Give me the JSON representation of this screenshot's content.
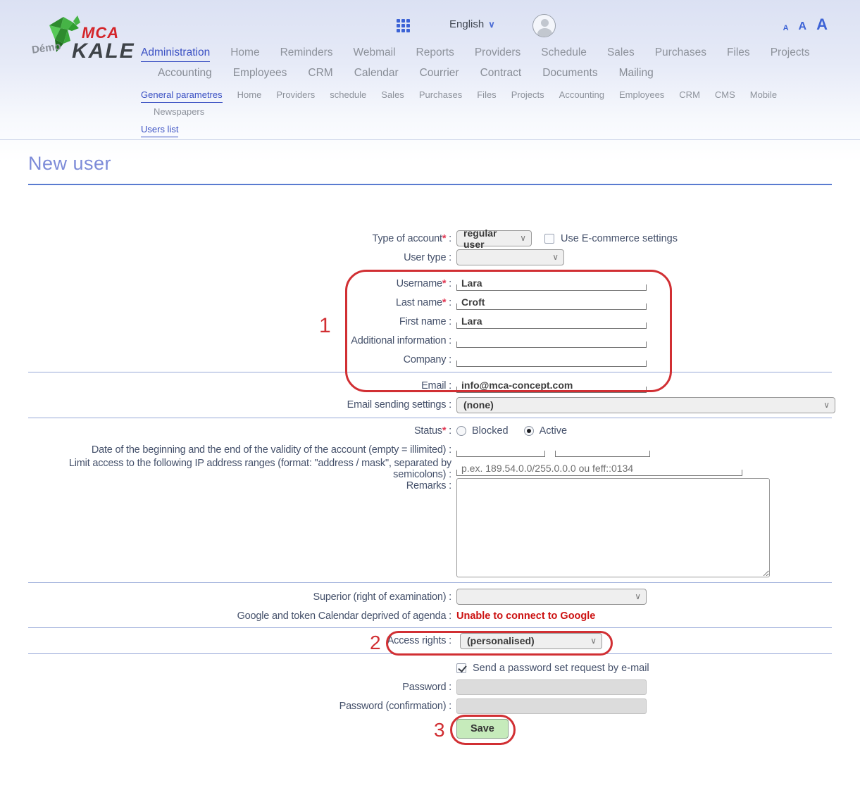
{
  "ui": {
    "colon": " :"
  },
  "header": {
    "logo": {
      "demo": "Démo",
      "mca": "MCA",
      "kale": "KALE"
    },
    "language": "English",
    "font_size_controls": [
      "A",
      "A",
      "A"
    ],
    "nav_row1": [
      "Administration",
      "Home",
      "Reminders",
      "Webmail",
      "Reports",
      "Providers",
      "Schedule",
      "Sales",
      "Purchases",
      "Files",
      "Projects"
    ],
    "nav_row1_active": "Administration",
    "nav_row2": [
      "Accounting",
      "Employees",
      "CRM",
      "Calendar",
      "Courrier",
      "Contract",
      "Documents",
      "Mailing"
    ],
    "nav_row3": [
      "General parametres",
      "Home",
      "Providers",
      "schedule",
      "Sales",
      "Purchases",
      "Files",
      "Projects",
      "Accounting",
      "Employees",
      "CRM",
      "CMS",
      "Mobile"
    ],
    "nav_row3_active": "General parametres",
    "nav_row4": [
      "Newspapers"
    ],
    "nav_row5": [
      "Users list"
    ],
    "nav_row5_active": "Users list"
  },
  "page": {
    "title": "New user"
  },
  "form": {
    "type_of_account": {
      "label": "Type of account",
      "required_mark": "*",
      "value": "regular user"
    },
    "ecommerce": {
      "label": "Use E-commerce settings",
      "checked": false
    },
    "user_type": {
      "label": "User type",
      "value": ""
    },
    "username": {
      "label": "Username",
      "required_mark": "*",
      "value": "Lara"
    },
    "last_name": {
      "label": "Last name",
      "required_mark": "*",
      "value": "Croft"
    },
    "first_name": {
      "label": "First name",
      "value": "Lara"
    },
    "additional_information": {
      "label": "Additional information",
      "value": ""
    },
    "company": {
      "label": "Company",
      "value": ""
    },
    "email": {
      "label": "Email",
      "value": "info@mca-concept.com"
    },
    "email_sending_settings": {
      "label": "Email sending settings",
      "value": "(none)"
    },
    "status": {
      "label": "Status",
      "required_mark": "*",
      "option_blocked": "Blocked",
      "option_active": "Active",
      "selected": "Active"
    },
    "validity": {
      "label": "Date of the beginning and the end of the validity of the account (empty = illimited)"
    },
    "ip_limit": {
      "label": "Limit access to the following IP address ranges (format: \"address / mask\", separated by semicolons)",
      "placeholder": "p.ex. 189.54.0.0/255.0.0.0 ou feff::0134"
    },
    "remarks": {
      "label": "Remarks",
      "value": ""
    },
    "superior": {
      "label": "Superior (right of examination)",
      "value": ""
    },
    "google_token": {
      "label": "Google and token Calendar deprived of agenda",
      "error": "Unable to connect to Google"
    },
    "access_rights": {
      "label": "Access rights",
      "value": "(personalised)"
    },
    "send_password_request": {
      "label": "Send a password set request by e-mail",
      "checked": true
    },
    "password": {
      "label": "Password"
    },
    "password_confirmation": {
      "label": "Password (confirmation)"
    },
    "save_label": "Save"
  },
  "annotations": {
    "step1": "1",
    "step2": "2",
    "step3": "3"
  }
}
